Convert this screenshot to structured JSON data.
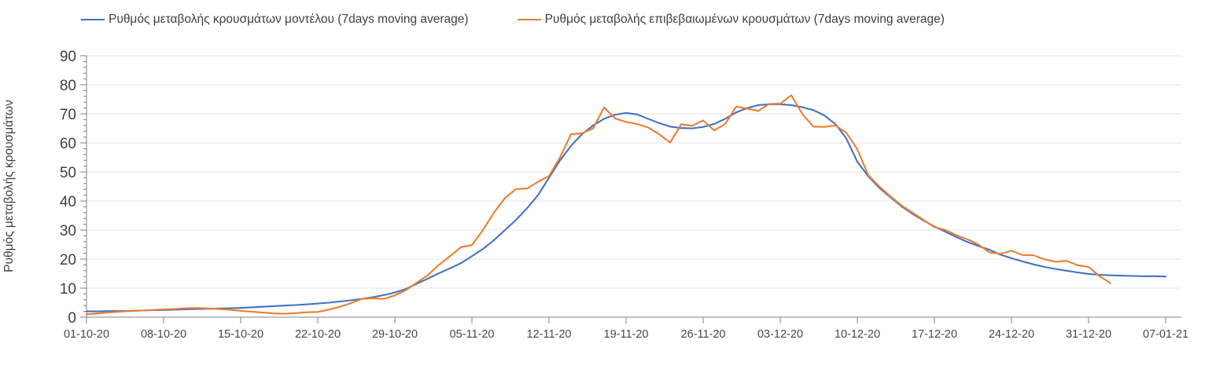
{
  "colors": {
    "model_line": "#4472C4",
    "confirmed_line": "#ED7D31",
    "grid": "#E6E6E6",
    "axis": "#808080",
    "text": "#404040"
  },
  "chart_data": {
    "type": "line",
    "title": "",
    "xlabel": "",
    "ylabel": "Ρυθμός μεταβολής κρουσμάτων",
    "ylim": [
      0,
      90
    ],
    "y_tick_step": 10,
    "y_minor_tick_step": 2,
    "grid": "horizontal",
    "legend_position": "top",
    "x_unit": "day",
    "x_tick_interval_days": 7,
    "x_tick_labels": [
      "01-10-20",
      "08-10-20",
      "15-10-20",
      "22-10-20",
      "29-10-20",
      "05-11-20",
      "12-11-20",
      "19-11-20",
      "26-11-20",
      "03-12-20",
      "10-12-20",
      "17-12-20",
      "24-12-20",
      "31-12-20",
      "07-01-21"
    ],
    "series": [
      {
        "name": "Ρυθμός μεταβολής κρουσμάτων μοντέλου (7days moving average)",
        "color": "#4472C4",
        "start_day": 0,
        "values": [
          2.0,
          2.0,
          2.1,
          2.1,
          2.2,
          2.3,
          2.4,
          2.5,
          2.6,
          2.7,
          2.8,
          2.9,
          3.0,
          3.1,
          3.2,
          3.4,
          3.6,
          3.8,
          4.0,
          4.2,
          4.4,
          4.7,
          5.0,
          5.4,
          5.8,
          6.3,
          6.9,
          7.6,
          8.5,
          9.7,
          11.5,
          13.3,
          15.1,
          16.8,
          18.6,
          21.0,
          23.5,
          26.5,
          30.0,
          33.5,
          37.5,
          42.0,
          48.0,
          54.0,
          59.0,
          63.0,
          66.0,
          68.3,
          69.7,
          70.3,
          69.8,
          68.3,
          66.8,
          65.6,
          65.1,
          65.0,
          65.5,
          66.5,
          68.3,
          70.5,
          72.0,
          73.0,
          73.3,
          73.3,
          73.0,
          72.3,
          71.3,
          69.5,
          66.5,
          61.5,
          53.5,
          48.5,
          44.5,
          41.3,
          38.2,
          35.6,
          33.3,
          31.2,
          29.4,
          27.6,
          25.9,
          24.5,
          23.2,
          21.5,
          20.3,
          19.2,
          18.2,
          17.3,
          16.6,
          16.0,
          15.4,
          14.9,
          14.6,
          14.4,
          14.3,
          14.2,
          14.1,
          14.1,
          14.0
        ]
      },
      {
        "name": "Ρυθμός μεταβολής επιβεβαιωμένων κρουσμάτων (7days moving average)",
        "color": "#ED7D31",
        "start_day": 0,
        "values": [
          1.0,
          1.3,
          1.6,
          1.9,
          2.1,
          2.3,
          2.5,
          2.7,
          2.8,
          3.1,
          3.2,
          3.0,
          2.8,
          2.6,
          2.2,
          1.9,
          1.6,
          1.3,
          1.2,
          1.4,
          1.7,
          1.8,
          2.6,
          3.6,
          4.8,
          6.3,
          6.5,
          6.3,
          7.5,
          9.3,
          11.9,
          14.5,
          18.0,
          21.0,
          24.1,
          24.8,
          30.0,
          36.0,
          41.0,
          44.1,
          44.3,
          46.6,
          48.6,
          55.0,
          63.0,
          63.3,
          65.0,
          72.2,
          68.4,
          67.2,
          66.5,
          65.3,
          63.0,
          60.1,
          66.4,
          65.9,
          67.7,
          64.3,
          66.5,
          72.5,
          71.8,
          71.0,
          73.4,
          73.5,
          76.4,
          70.0,
          65.6,
          65.5,
          66.0,
          63.5,
          57.8,
          48.8,
          45.0,
          41.6,
          38.5,
          36.0,
          33.5,
          31.0,
          30.0,
          28.2,
          26.8,
          25.0,
          22.3,
          21.8,
          22.9,
          21.4,
          21.3,
          19.9,
          19.1,
          19.4,
          17.9,
          17.3,
          14.1,
          11.7
        ]
      }
    ]
  }
}
